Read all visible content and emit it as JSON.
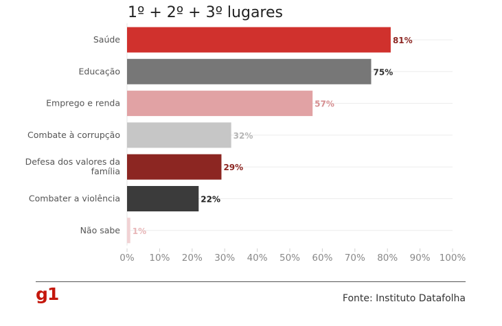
{
  "chart_data": {
    "type": "bar",
    "orientation": "horizontal",
    "title": "1º + 2º + 3º lugares",
    "categories": [
      [
        "Saúde"
      ],
      [
        "Educação"
      ],
      [
        "Emprego e renda"
      ],
      [
        "Combate à corrupção"
      ],
      [
        "Defesa dos valores da",
        "família"
      ],
      [
        "Combater a violência"
      ],
      [
        "Não sabe"
      ]
    ],
    "values": [
      81,
      75,
      57,
      32,
      29,
      22,
      1
    ],
    "value_labels": [
      "81%",
      "75%",
      "57%",
      "32%",
      "29%",
      "22%",
      "1%"
    ],
    "bar_colors": [
      "#d0312d",
      "#777777",
      "#e1a2a4",
      "#c6c6c6",
      "#8c2622",
      "#3b3b3b",
      "#f1d2d4"
    ],
    "label_colors": [
      "#8c2622",
      "#333333",
      "#d68f91",
      "#b5b5b5",
      "#8c2622",
      "#222222",
      "#e8b6b8"
    ],
    "x_ticks": [
      "0%",
      "10%",
      "20%",
      "30%",
      "40%",
      "50%",
      "60%",
      "70%",
      "80%",
      "90%",
      "100%"
    ],
    "xlim": [
      0,
      100
    ],
    "xlabel": "",
    "ylabel": "",
    "grid": true
  },
  "brand": {
    "logo_text": "g1",
    "accent_color": "#c4170c"
  },
  "footer": {
    "source": "Fonte: Instituto Datafolha"
  }
}
